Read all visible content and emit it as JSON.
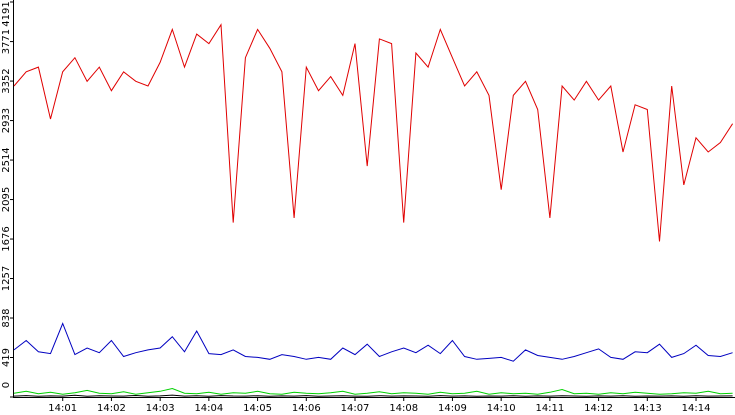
{
  "chart_data": {
    "type": "line",
    "x": [
      0,
      0.25,
      0.5,
      0.75,
      1,
      1.25,
      1.5,
      1.75,
      2,
      2.25,
      2.5,
      2.75,
      3,
      3.25,
      3.5,
      3.75,
      4,
      4.25,
      4.5,
      4.75,
      5,
      5.25,
      5.5,
      5.75,
      6,
      6.25,
      6.5,
      6.75,
      7,
      7.25,
      7.5,
      7.75,
      8,
      8.25,
      8.5,
      8.75,
      9,
      9.25,
      9.5,
      9.75,
      10,
      10.25,
      10.5,
      10.75,
      11,
      11.25,
      11.5,
      11.75,
      12,
      12.25,
      12.5,
      12.75,
      13,
      13.25,
      13.5,
      13.75,
      14,
      14.25,
      14.5,
      14.75
    ],
    "series": [
      {
        "color": "#e00000",
        "values": [
          3300,
          3450,
          3500,
          2950,
          3450,
          3600,
          3350,
          3500,
          3250,
          3450,
          3350,
          3300,
          3550,
          3900,
          3500,
          3850,
          3750,
          3950,
          1850,
          3600,
          3900,
          3700,
          3450,
          1900,
          3500,
          3250,
          3400,
          3200,
          3750,
          2450,
          3800,
          3750,
          1850,
          3650,
          3500,
          3900,
          3600,
          3300,
          3450,
          3200,
          2200,
          3200,
          3350,
          3050,
          1900,
          3300,
          3150,
          3350,
          3150,
          3300,
          2600,
          3100,
          3050,
          1650,
          3300,
          2250,
          2750,
          2600,
          2700,
          2900
        ]
      },
      {
        "color": "#0000c0",
        "values": [
          500,
          600,
          480,
          460,
          780,
          450,
          520,
          470,
          600,
          430,
          470,
          500,
          520,
          640,
          480,
          700,
          460,
          450,
          500,
          430,
          420,
          400,
          450,
          430,
          400,
          420,
          400,
          520,
          450,
          560,
          430,
          480,
          520,
          470,
          550,
          460,
          600,
          430,
          400,
          410,
          420,
          380,
          500,
          440,
          420,
          400,
          430,
          470,
          510,
          420,
          400,
          480,
          470,
          560,
          420,
          460,
          550,
          440,
          430,
          470
        ]
      },
      {
        "color": "#00d000",
        "values": [
          40,
          60,
          35,
          50,
          30,
          45,
          70,
          40,
          35,
          55,
          30,
          45,
          60,
          90,
          40,
          35,
          50,
          30,
          45,
          40,
          60,
          35,
          30,
          50,
          40,
          35,
          45,
          60,
          30,
          40,
          55,
          35,
          45,
          40,
          30,
          50,
          35,
          40,
          60,
          30,
          45,
          35,
          40,
          30,
          50,
          80,
          35,
          40,
          30,
          45,
          35,
          50,
          40,
          30,
          35,
          45,
          40,
          60,
          35,
          40
        ]
      },
      {
        "color": "#000000",
        "values": [
          10,
          15,
          8,
          12,
          10,
          18,
          9,
          14,
          11,
          10,
          16,
          9,
          12,
          20,
          10,
          13,
          9,
          15,
          11,
          10,
          14,
          9,
          12,
          10,
          15,
          8,
          11,
          13,
          10,
          9,
          14,
          10,
          12,
          11,
          9,
          15,
          10,
          12,
          9,
          11,
          10,
          13,
          9,
          12,
          10,
          14,
          11,
          9,
          12,
          10,
          13,
          9,
          11,
          10,
          12,
          9,
          14,
          10,
          11,
          12
        ]
      }
    ],
    "xlim": [
      0,
      14.8
    ],
    "xticks": [
      {
        "value": 1,
        "label": "14:01"
      },
      {
        "value": 2,
        "label": "14:02"
      },
      {
        "value": 3,
        "label": "14:03"
      },
      {
        "value": 4,
        "label": "14:04"
      },
      {
        "value": 5,
        "label": "14:05"
      },
      {
        "value": 6,
        "label": "14:06"
      },
      {
        "value": 7,
        "label": "14:07"
      },
      {
        "value": 8,
        "label": "14:08"
      },
      {
        "value": 9,
        "label": "14:09"
      },
      {
        "value": 10,
        "label": "14:10"
      },
      {
        "value": 11,
        "label": "14:11"
      },
      {
        "value": 12,
        "label": "14:12"
      },
      {
        "value": 13,
        "label": "14:13"
      },
      {
        "value": 14,
        "label": "14:14"
      }
    ],
    "ylim": [
      0,
      4191
    ],
    "yticks": [
      0,
      419,
      838,
      1257,
      1676,
      2095,
      2514,
      2933,
      3352,
      3771,
      4191
    ],
    "grid": false
  }
}
